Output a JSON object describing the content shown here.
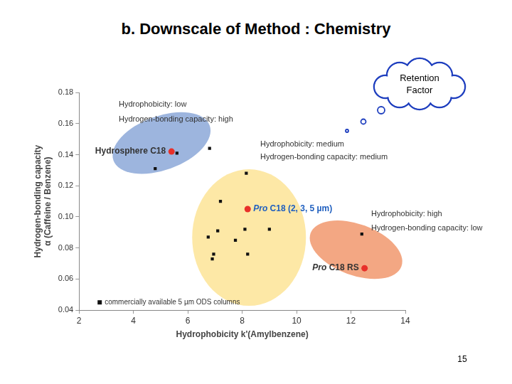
{
  "title": "b. Downscale of Method : Chemistry",
  "page_number": 15,
  "callout": "Retention Factor",
  "chart_data": {
    "type": "scatter",
    "x_label": "Hydrophobicity k'(Amylbenzene)",
    "y_label": [
      "Hydrogen-bonding capacity",
      "α (Caffeine / Benzene)"
    ],
    "xlim": [
      2,
      14
    ],
    "xticks": [
      2,
      4,
      6,
      8,
      10,
      12,
      14
    ],
    "ylim": [
      0.04,
      0.18
    ],
    "yticks": [
      0.04,
      0.06,
      0.08,
      {
        "value": 0.1,
        "label": "0.10"
      },
      0.12,
      0.14,
      0.16,
      0.18
    ],
    "grid": false,
    "legend": "lower left",
    "series": [
      {
        "name": "commercially available 5 µm ODS columns",
        "color": "#111111",
        "marker": "square",
        "x": [
          5.6,
          6.8,
          4.8,
          8.15,
          7.2,
          7.1,
          6.75,
          8.1,
          9.0,
          7.75,
          6.95,
          6.9,
          8.2,
          12.4
        ],
        "values": [
          0.141,
          0.144,
          0.131,
          0.128,
          0.11,
          0.091,
          0.087,
          0.092,
          0.092,
          0.085,
          0.076,
          0.073,
          0.076,
          0.089
        ]
      },
      {
        "name": "Hydrosphere C18",
        "color": "#e8302a",
        "marker": "circle",
        "x": [
          5.4
        ],
        "values": [
          0.142
        ]
      },
      {
        "name": "Pro C18 (2, 3, 5 µm)",
        "color": "#e8302a",
        "marker": "circle",
        "x": [
          8.2
        ],
        "values": [
          0.105
        ]
      },
      {
        "name": "Pro C18 RS",
        "color": "#e8302a",
        "marker": "circle",
        "x": [
          12.5
        ],
        "values": [
          0.067
        ]
      }
    ],
    "annotations": [
      "Hydrophobicity: low",
      "Hydrogen-bonding capacity: high",
      "Hydrophobicity: medium",
      "Hydrogen-bonding capacity: medium",
      "Hydrophobicity: high",
      "Hydrogen-bonding capacity: low"
    ]
  }
}
